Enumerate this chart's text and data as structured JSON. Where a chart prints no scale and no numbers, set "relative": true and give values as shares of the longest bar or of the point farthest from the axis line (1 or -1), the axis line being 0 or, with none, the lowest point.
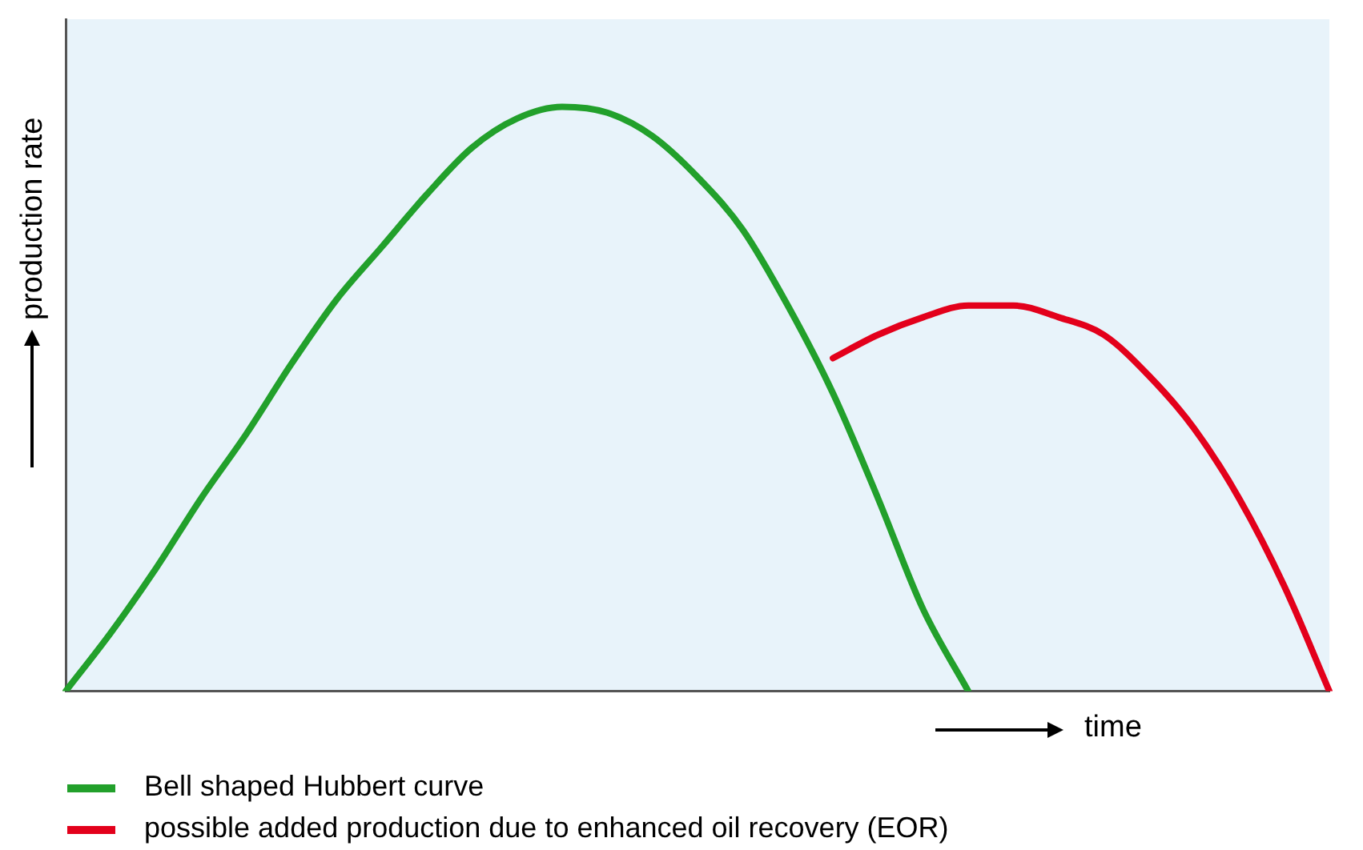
{
  "chart_data": {
    "type": "line",
    "relative": true,
    "xlabel": "time",
    "ylabel": "production rate",
    "legend": "bottom",
    "grid": false,
    "marker": "none",
    "line_style": "solid",
    "categories": [
      null,
      null,
      null,
      null,
      null,
      null,
      null,
      null,
      null,
      null,
      null,
      null,
      null,
      null,
      null,
      null,
      null,
      null,
      null,
      null,
      null,
      null,
      null,
      null,
      null,
      null,
      null,
      null,
      null
    ],
    "series": [
      {
        "name": "Bell shaped Hubbert curve",
        "color": "#22a02b",
        "values": [
          0,
          0.1,
          0.21,
          0.33,
          0.44,
          0.56,
          0.67,
          0.76,
          0.85,
          0.93,
          0.98,
          1,
          0.99,
          0.95,
          0.88,
          0.79,
          0.66,
          0.51,
          0.33,
          0.14,
          0,
          null,
          null,
          null,
          null,
          null,
          null,
          null,
          null
        ]
      },
      {
        "name": "possible added production due to enhanced oil recovery (EOR)",
        "color": "#e3001b",
        "values": [
          null,
          null,
          null,
          null,
          null,
          null,
          null,
          null,
          null,
          null,
          null,
          null,
          null,
          null,
          null,
          null,
          null,
          0.57,
          0.61,
          0.64,
          0.66,
          0.66,
          0.64,
          0.61,
          0.54,
          0.45,
          0.33,
          0.18,
          0
        ]
      }
    ]
  }
}
